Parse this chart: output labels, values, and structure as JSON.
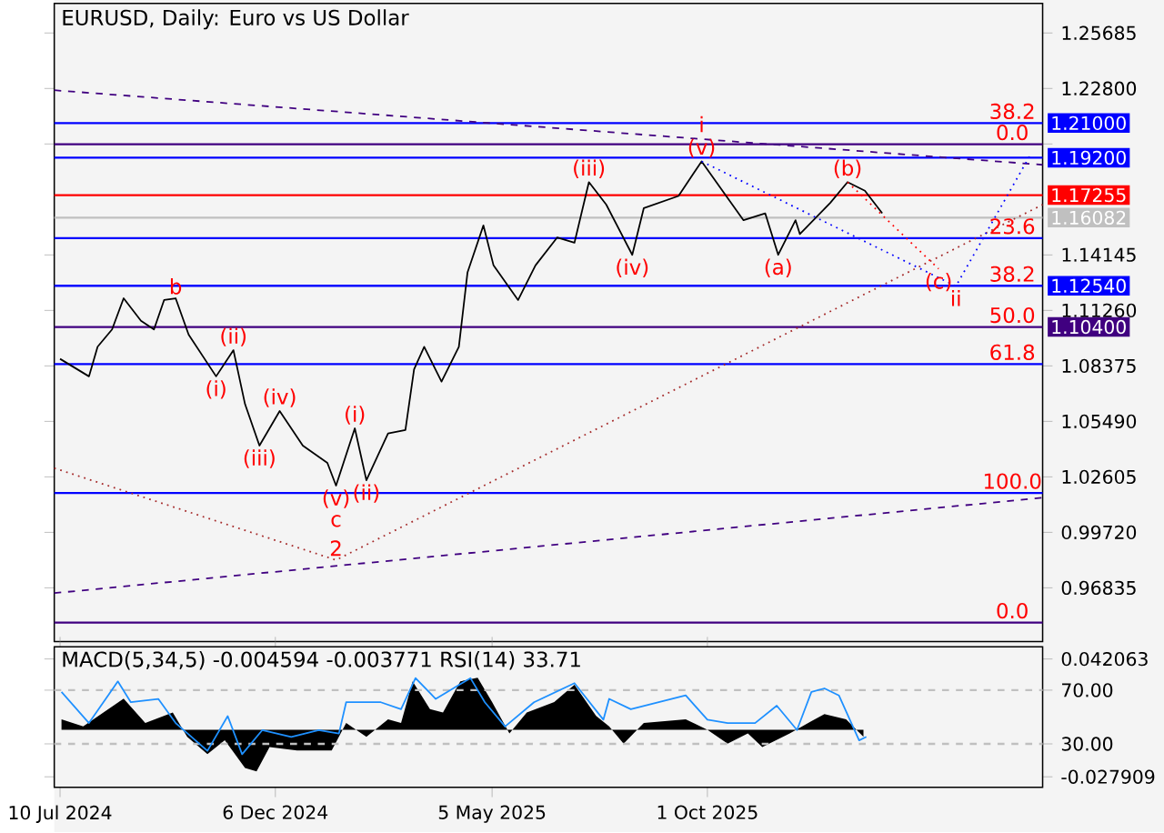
{
  "chart_data": [
    {
      "type": "line",
      "title": "EURUSD, Daily:  Euro vs US Dollar",
      "tick_labels": "y",
      "xlim": [
        "2024-07-06",
        "2026-05-21"
      ],
      "ylim": [
        0.9404,
        1.2722
      ],
      "yticks": [
        {
          "value": 0.96835,
          "label": "0.96835"
        },
        {
          "value": 0.9972,
          "label": "0.99720"
        },
        {
          "value": 1.02605,
          "label": "1.02605"
        },
        {
          "value": 1.0549,
          "label": "1.05490"
        },
        {
          "value": 1.08375,
          "label": "1.08375"
        },
        {
          "value": 1.1126,
          "label": "1.11260"
        },
        {
          "value": 1.14145,
          "label": "1.14145"
        },
        {
          "value": 1.19915,
          "label": null
        },
        {
          "value": 1.228,
          "label": "1.22800"
        },
        {
          "value": 1.25685,
          "label": "1.25685"
        }
      ],
      "x": [
        "2024-07-10",
        "2024-07-30",
        "2024-08-05",
        "2024-08-15",
        "2024-08-23",
        "2024-09-04",
        "2024-09-13",
        "2024-09-20",
        "2024-09-28",
        "2024-10-07",
        "2024-10-26",
        "2024-11-07",
        "2024-11-15",
        "2024-11-25",
        "2024-12-09",
        "2024-12-25",
        "2025-01-11",
        "2025-01-17",
        "2025-01-30",
        "2025-02-07",
        "2025-02-22",
        "2025-03-06",
        "2025-03-12",
        "2025-03-19",
        "2025-03-31",
        "2025-04-12",
        "2025-04-18",
        "2025-04-29",
        "2025-05-06",
        "2025-05-23",
        "2025-06-04",
        "2025-06-19",
        "2025-07-01",
        "2025-07-11",
        "2025-07-23",
        "2025-08-10",
        "2025-08-18",
        "2025-09-11",
        "2025-09-27",
        "2025-10-14",
        "2025-10-26",
        "2025-11-10",
        "2025-11-19",
        "2025-12-01",
        "2025-12-04",
        "2025-12-25",
        "2026-01-06",
        "2026-01-18",
        "2026-01-30"
      ],
      "series": [
        {
          "color": "#000000",
          "values": [
            1.0874,
            1.0783,
            1.0937,
            1.1027,
            1.1189,
            1.1072,
            1.1027,
            1.118,
            1.1189,
            1.1,
            1.0783,
            1.0919,
            1.0639,
            1.0423,
            1.0603,
            1.0423,
            1.0333,
            1.0215,
            1.0513,
            1.0243,
            1.0486,
            1.0504,
            1.082,
            1.0937,
            1.0756,
            1.0937,
            1.1324,
            1.1568,
            1.136,
            1.118,
            1.136,
            1.1505,
            1.1478,
            1.1793,
            1.1676,
            1.1415,
            1.1658,
            1.1721,
            1.1901,
            1.1721,
            1.1595,
            1.1631,
            1.1415,
            1.1595,
            1.1523,
            1.1685,
            1.1793,
            1.1748,
            1.1631
          ]
        },
        {
          "type": "line",
          "x": [
            "2024-07-06",
            "2026-05-21"
          ],
          "values": [
            1.2271,
            1.1883
          ],
          "color": "#400080",
          "line_style": "dashed"
        },
        {
          "type": "line",
          "x": [
            "2024-07-06",
            "2026-05-21"
          ],
          "values": [
            0.9656,
            1.0152
          ],
          "color": "#400080",
          "line_style": "dashed"
        },
        {
          "type": "line",
          "x": [
            "2024-07-06",
            "2025-01-17",
            "2026-05-21"
          ],
          "values": [
            1.0306,
            0.9828,
            1.1676
          ],
          "color": "#a52a2a",
          "line_style": "dotted"
        },
        {
          "type": "line",
          "x": [
            "2026-01-06",
            "2026-03-10"
          ],
          "values": [
            1.1793,
            1.1342
          ],
          "color": "#ff0000",
          "line_style": "dotted"
        },
        {
          "type": "line",
          "x": [
            "2025-09-27",
            "2026-03-22",
            "2026-05-12"
          ],
          "values": [
            1.1901,
            1.1252,
            1.1928
          ],
          "color": "#0000ff",
          "line_style": "dotted"
        }
      ],
      "ref_lines": [
        {
          "axis": "y",
          "value": 1.21,
          "label": "1.21000",
          "color": "#0000ff"
        },
        {
          "axis": "y",
          "value": 1.199,
          "color": "#400080"
        },
        {
          "axis": "y",
          "value": 1.192,
          "label": "1.19200",
          "color": "#0000ff"
        },
        {
          "axis": "y",
          "value": 1.17255,
          "label": "1.17255",
          "color": "#ff0000"
        },
        {
          "axis": "y",
          "value": 1.16082,
          "label": "1.16082",
          "color": "#c0c0c0"
        },
        {
          "axis": "y",
          "value": 1.1502,
          "color": "#0000ff"
        },
        {
          "axis": "y",
          "value": 1.1254,
          "label": "1.12540",
          "color": "#0000ff"
        },
        {
          "axis": "y",
          "value": 1.104,
          "label": "1.10400",
          "color": "#400080"
        },
        {
          "axis": "y",
          "value": 1.0847,
          "color": "#0000ff"
        },
        {
          "axis": "y",
          "value": 1.0177,
          "color": "#0000ff"
        },
        {
          "axis": "y",
          "value": 0.9503,
          "color": "#400080"
        }
      ],
      "annotations": [
        {
          "text": "b",
          "x": "2024-09-28",
          "y": 1.1189
        },
        {
          "text": "(ii)",
          "x": "2024-11-07",
          "y": 1.0919
        },
        {
          "text": "(i)",
          "x": "2024-10-26",
          "y": 1.0783
        },
        {
          "text": "(iv)",
          "x": "2024-12-09",
          "y": 1.0603
        },
        {
          "text": "(iii)",
          "x": "2024-11-25",
          "y": 1.0423
        },
        {
          "text": "(v)",
          "x": "2025-01-17",
          "y": 1.0215
        },
        {
          "text": "c",
          "x": "2025-01-17",
          "y": 1.0215
        },
        {
          "text": "2",
          "x": "2025-01-17",
          "y": 1.0215
        },
        {
          "text": "(i)",
          "x": "2025-01-30",
          "y": 1.0513
        },
        {
          "text": "(ii)",
          "x": "2025-02-07",
          "y": 1.0243
        },
        {
          "text": "(iii)",
          "x": "2025-07-11",
          "y": 1.1793
        },
        {
          "text": "(iv)",
          "x": "2025-08-10",
          "y": 1.1415
        },
        {
          "text": "(v)",
          "x": "2025-09-27",
          "y": 1.1901
        },
        {
          "text": "i",
          "x": "2025-09-27",
          "y": 1.1901
        },
        {
          "text": "(a)",
          "x": "2025-11-19",
          "y": 1.1415
        },
        {
          "text": "(b)",
          "x": "2026-01-06",
          "y": 1.1793
        },
        {
          "text": "(c)",
          "x": "2026-03-10",
          "y": 1.1342
        },
        {
          "text": "ii",
          "x": "2026-03-22",
          "y": 1.1252
        },
        {
          "text": "38.2",
          "x": "2026-04-30",
          "y": 1.21
        },
        {
          "text": "0.0",
          "x": "2026-04-30",
          "y": 1.199
        },
        {
          "text": "23.6",
          "x": "2026-04-30",
          "y": 1.1502
        },
        {
          "text": "38.2",
          "x": "2026-04-30",
          "y": 1.1254
        },
        {
          "text": "50.0",
          "x": "2026-04-30",
          "y": 1.104
        },
        {
          "text": "61.8",
          "x": "2026-04-30",
          "y": 1.0847
        },
        {
          "text": "100.0",
          "x": "2026-04-30",
          "y": 1.0177
        },
        {
          "text": "0.0",
          "x": "2026-04-30",
          "y": 0.9503
        }
      ]
    },
    {
      "type": "area",
      "title": "MACD(5,34,5) -0.004594 -0.003771 RSI(14) 33.71",
      "xlim": [
        "2024-07-06",
        "2026-05-21"
      ],
      "xticks": [
        {
          "value": "2024-07-10",
          "label": "10 Jul 2024"
        },
        {
          "value": "2024-12-06",
          "label": "6 Dec 2024"
        },
        {
          "value": "2025-05-05",
          "label": "5 May 2025"
        },
        {
          "value": "2025-10-01",
          "label": "1 Oct 2025"
        }
      ],
      "ylim": [
        -0.0341,
        0.0493
      ],
      "yticks": [
        -0.027909,
        0.042063
      ],
      "y2lim": [
        -2.3,
        102.3
      ],
      "y2ticks": [
        {
          "value": 70,
          "label": "70.00"
        },
        {
          "value": 30,
          "label": "30.00"
        }
      ],
      "ref_lines": [
        {
          "axis": "y2",
          "value": 70,
          "color": "#c0c0c0",
          "line_style": "dashed"
        },
        {
          "axis": "y2",
          "value": 30,
          "color": "#c0c0c0",
          "line_style": "dashed"
        }
      ],
      "series": [
        {
          "color": "#000000",
          "x": [
            "2024-07-11",
            "2024-07-26",
            "2024-08-09",
            "2024-08-23",
            "2024-09-07",
            "2024-09-26",
            "2024-10-06",
            "2024-10-20",
            "2024-11-01",
            "2024-11-15",
            "2024-11-23",
            "2024-12-02",
            "2024-12-21",
            "2025-01-14",
            "2025-01-24",
            "2025-02-07",
            "2025-02-22",
            "2025-03-03",
            "2025-03-11",
            "2025-03-23",
            "2025-04-01",
            "2025-04-13",
            "2025-04-25",
            "2025-05-05",
            "2025-05-17",
            "2025-05-29",
            "2025-06-17",
            "2025-07-01",
            "2025-07-16",
            "2025-07-25",
            "2025-08-04",
            "2025-08-18",
            "2025-09-16",
            "2025-10-01",
            "2025-10-15",
            "2025-10-29",
            "2025-11-08",
            "2025-11-27",
            "2025-12-12",
            "2025-12-21",
            "2026-01-05",
            "2026-01-17"
          ],
          "values": [
            0.0062,
            0.0021,
            0.0103,
            0.0185,
            0.0041,
            0.0103,
            -0.0041,
            -0.0144,
            -0.0062,
            -0.0226,
            -0.0247,
            -0.0103,
            -0.0123,
            -0.0123,
            0.0041,
            -0.0041,
            0.0062,
            0.0041,
            0.0288,
            0.0123,
            0.0103,
            0.0288,
            0.0309,
            0.0165,
            -0.0021,
            0.0103,
            0.0165,
            0.0268,
            0.0082,
            0.0021,
            -0.0082,
            0.0041,
            0.0062,
            0,
            -0.0082,
            -0.0021,
            -0.0103,
            -0.0021,
            0.0051,
            0.0093,
            0.0062,
            -0.0041
          ]
        },
        {
          "type": "line",
          "axis": "y2",
          "color": "#1e90ff",
          "x": [
            "2024-07-11",
            "2024-07-30",
            "2024-08-19",
            "2024-08-28",
            "2024-09-16",
            "2024-09-28",
            "2024-10-20",
            "2024-11-03",
            "2024-11-13",
            "2024-11-27",
            "2024-12-17",
            "2025-01-05",
            "2025-01-19",
            "2025-01-24",
            "2025-02-17",
            "2025-03-03",
            "2025-03-13",
            "2025-03-27",
            "2025-04-20",
            "2025-04-30",
            "2025-05-14",
            "2025-06-03",
            "2025-07-01",
            "2025-07-21",
            "2025-07-25",
            "2025-08-09",
            "2025-09-16",
            "2025-10-01",
            "2025-10-15",
            "2025-11-03",
            "2025-11-18",
            "2025-12-02",
            "2025-12-12",
            "2025-12-21",
            "2025-12-31",
            "2026-01-14",
            "2026-01-19"
          ],
          "values": [
            68.7,
            45.5,
            76.5,
            61,
            63.5,
            45.5,
            24.8,
            50.7,
            22.3,
            40.3,
            35.2,
            40.3,
            37.7,
            61,
            61,
            55.8,
            79,
            63.5,
            79,
            61,
            42.9,
            61,
            75.2,
            48,
            63.5,
            55.8,
            66.1,
            48,
            45.5,
            45.5,
            58.4,
            40.3,
            68.7,
            71.3,
            66.1,
            32.6,
            35.2
          ]
        }
      ]
    }
  ]
}
